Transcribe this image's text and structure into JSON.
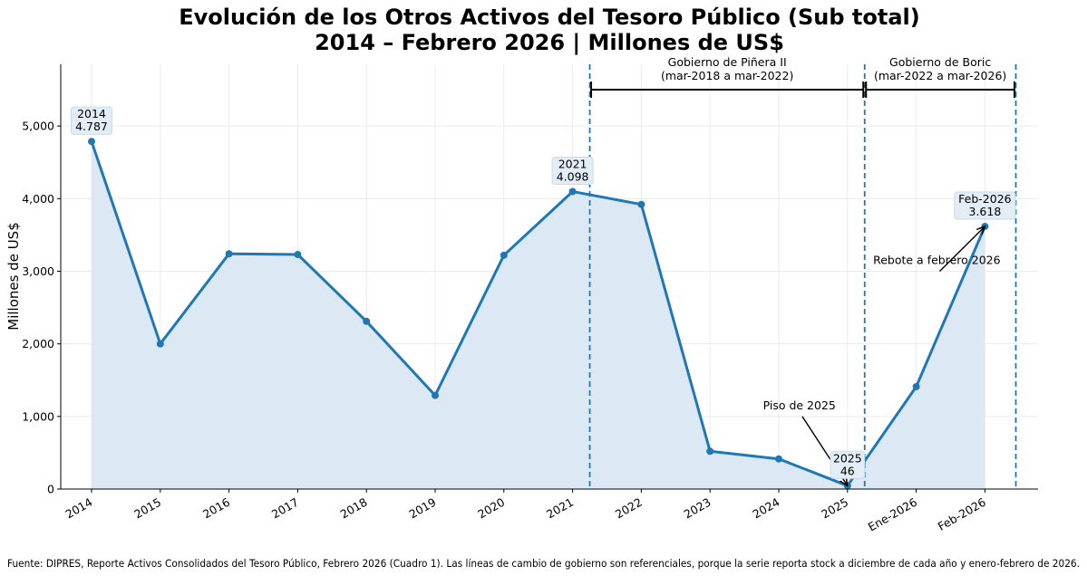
{
  "chart_data": {
    "type": "line",
    "title_line1": "Evolución de los Otros Activos del Tesoro Público (Sub total)",
    "title_line2": "2014 – Febrero 2026 | Millones de US$",
    "ylabel": "Millones de US$",
    "xlabel": "",
    "ylim": [
      0,
      5850
    ],
    "yticks": [
      0,
      1000,
      2000,
      3000,
      4000,
      5000
    ],
    "ytick_labels": [
      "0",
      "1,000",
      "2,000",
      "3,000",
      "4,000",
      "5,000"
    ],
    "categories": [
      "2014",
      "2015",
      "2016",
      "2017",
      "2018",
      "2019",
      "2020",
      "2021",
      "2022",
      "2023",
      "2024",
      "2025",
      "Ene-2026",
      "Feb-2026"
    ],
    "values": [
      4787,
      2000,
      3240,
      3230,
      2310,
      1290,
      3220,
      4098,
      3920,
      520,
      415,
      46,
      1410,
      3618
    ],
    "grid": true,
    "series_color": "#1f77b4",
    "fill_color": "#dce8f3",
    "point_labels": [
      {
        "index": 0,
        "line1": "2014",
        "line2": "4.787"
      },
      {
        "index": 7,
        "line1": "2021",
        "line2": "4.098"
      },
      {
        "index": 11,
        "line1": "2025",
        "line2": "46"
      },
      {
        "index": 13,
        "line1": "Feb-2026",
        "line2": "3.618"
      }
    ],
    "government_lines": [
      7.25,
      11.25,
      13.45
    ],
    "governments": [
      {
        "name": "Gobierno de Piñera II",
        "period": "(mar-2018 a mar-2022)",
        "from": 7.25,
        "to": 11.25
      },
      {
        "name": "Gobierno de Boric",
        "period": "(mar-2022 a mar-2026)",
        "from": 11.25,
        "to": 13.45
      }
    ],
    "annotations": [
      {
        "text": "Piso de 2025",
        "target_index": 11,
        "text_x": 10.3,
        "text_y": 1100
      },
      {
        "text": "Rebote a febrero 2026",
        "target_index": 13,
        "text_x": 12.3,
        "text_y": 3100
      }
    ]
  },
  "footer": {
    "source": "Fuente: DIPRES, Reporte Activos Consolidados del Tesoro Público, Febrero 2026 (Cuadro 1). Las líneas de cambio de gobierno son referenciales, porque la serie reporta stock a diciembre de cada año y enero-febrero de 2026."
  }
}
